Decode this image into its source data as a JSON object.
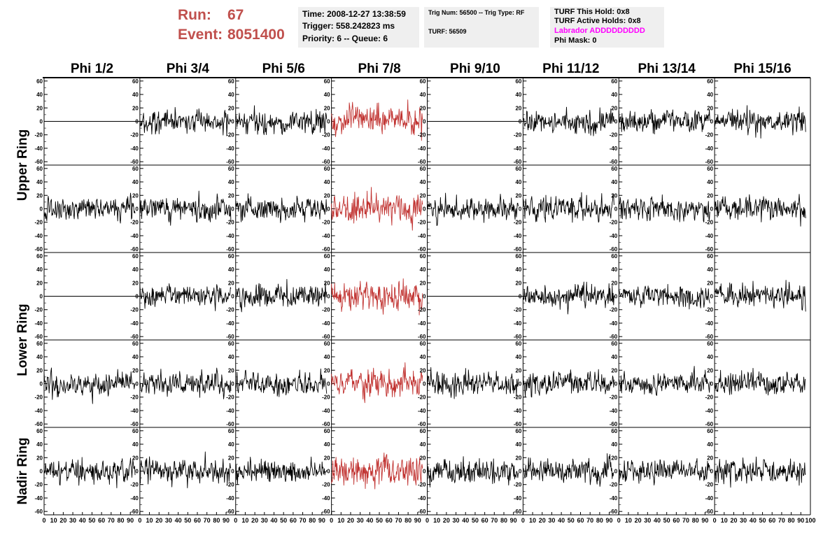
{
  "header": {
    "run_label": "Run:",
    "run_value": "67",
    "event_label": "Event:",
    "event_value": "8051400",
    "accent_color": "#c0504d"
  },
  "info_time": {
    "time": "Time: 2008-12-27 13:38:59",
    "trigger": "Trigger: 558.242823 ms",
    "priority": "Priority: 6 -- Queue: 6"
  },
  "info_trig": {
    "trig_num": "Trig Num: 56500 -- Trig Type: RF",
    "turf": "TURF: 56509"
  },
  "info_turf": {
    "this_hold": "TURF This Hold: 0x8",
    "active_holds": "TURF Active Holds: 0x8",
    "labrador": "Labrador ADDDDDDDDD",
    "labrador_color": "#ff00ff",
    "phi_mask": "Phi Mask: 0"
  },
  "chart_data": {
    "type": "line",
    "layout": "grid of waveform panels",
    "columns": [
      "Phi 1/2",
      "Phi 3/4",
      "Phi 5/6",
      "Phi 7/8",
      "Phi 9/10",
      "Phi 11/12",
      "Phi 13/14",
      "Phi 15/16"
    ],
    "rows": [
      "Upper Ring",
      "",
      "Lower Ring",
      "",
      "Nadir Ring"
    ],
    "row_labels": [
      {
        "text": "Upper Ring",
        "rows": [
          0,
          1
        ]
      },
      {
        "text": "Lower Ring",
        "rows": [
          2,
          3
        ]
      },
      {
        "text": "Nadir Ring",
        "rows": [
          4
        ]
      }
    ],
    "xlim": [
      0,
      100
    ],
    "ylim": [
      -65,
      65
    ],
    "x_ticks": [
      0,
      10,
      20,
      30,
      40,
      50,
      60,
      70,
      80,
      90,
      100
    ],
    "y_ticks": [
      -60,
      -40,
      -20,
      0,
      20,
      40,
      60
    ],
    "waveform_color": "#000000",
    "highlight_color": "#c0302e",
    "highlight_column": 3,
    "flat_panels": [
      [
        0,
        0
      ],
      [
        0,
        4
      ],
      [
        2,
        0
      ],
      [
        2,
        4
      ]
    ],
    "samples": 200,
    "x_range": [
      0,
      95
    ],
    "amplitude_rms": 11
  }
}
